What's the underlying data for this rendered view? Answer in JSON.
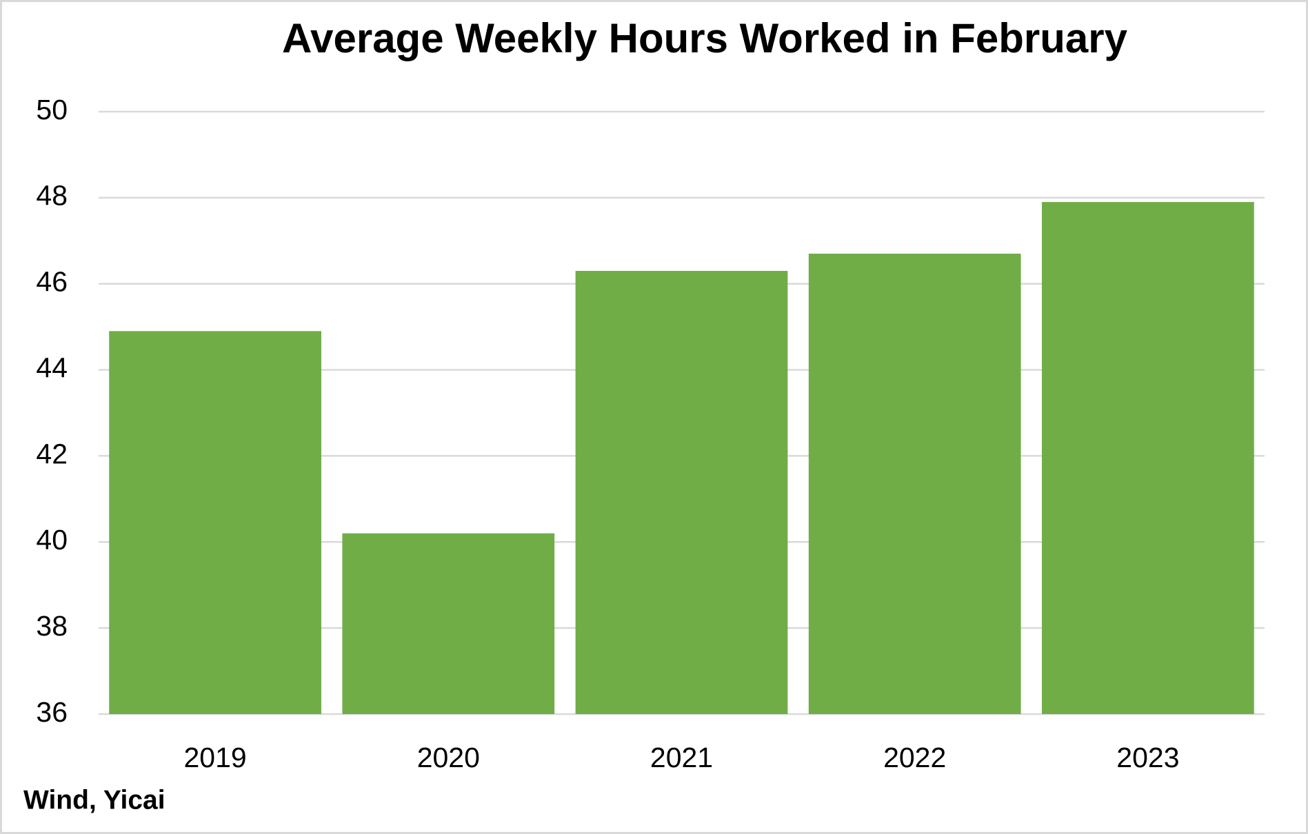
{
  "chart_data": {
    "type": "bar",
    "title": "Average Weekly Hours Worked in February",
    "categories": [
      "2019",
      "2020",
      "2021",
      "2022",
      "2023"
    ],
    "values": [
      44.9,
      40.2,
      46.3,
      46.7,
      47.9
    ],
    "color": "#70ad47",
    "ylim": [
      36,
      50
    ],
    "yticks": [
      36,
      38,
      40,
      42,
      44,
      46,
      48,
      50
    ],
    "grid": true,
    "source": "Wind, Yicai"
  }
}
